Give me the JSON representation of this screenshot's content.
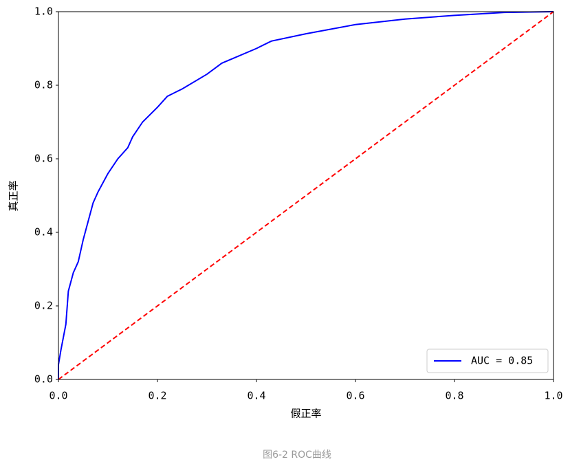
{
  "chart_data": {
    "type": "line",
    "xlabel": "假正率",
    "ylabel": "真正率",
    "caption": "图6-2 ROC曲线",
    "series": [
      {
        "name": "AUC = 0.85",
        "color": "#0000ff",
        "x": [
          0,
          0,
          0.005,
          0.015,
          0.02,
          0.03,
          0.04,
          0.05,
          0.06,
          0.07,
          0.08,
          0.1,
          0.12,
          0.14,
          0.15,
          0.17,
          0.2,
          0.22,
          0.25,
          0.3,
          0.33,
          0.4,
          0.43,
          0.5,
          0.6,
          0.7,
          0.8,
          0.9,
          1
        ],
        "values": [
          0,
          0.04,
          0.08,
          0.15,
          0.24,
          0.29,
          0.32,
          0.38,
          0.43,
          0.48,
          0.51,
          0.56,
          0.6,
          0.63,
          0.66,
          0.7,
          0.74,
          0.77,
          0.79,
          0.83,
          0.86,
          0.9,
          0.92,
          0.94,
          0.965,
          0.98,
          0.99,
          0.998,
          1
        ]
      },
      {
        "color": "#ff0000",
        "dashed": true,
        "x": [
          0,
          1
        ],
        "values": [
          0,
          1
        ]
      }
    ],
    "xlim": [
      0,
      1
    ],
    "ylim": [
      0,
      1
    ],
    "xticks": [
      {
        "value": 0,
        "label": "0.0"
      },
      0.2,
      0.4,
      0.6,
      0.8,
      {
        "value": 1,
        "label": "1.0"
      }
    ],
    "yticks": [
      {
        "value": 0,
        "label": "0.0"
      },
      0.2,
      0.4,
      0.6,
      0.8,
      {
        "value": 1,
        "label": "1.0"
      }
    ],
    "legend": "lower right",
    "grid": false
  }
}
